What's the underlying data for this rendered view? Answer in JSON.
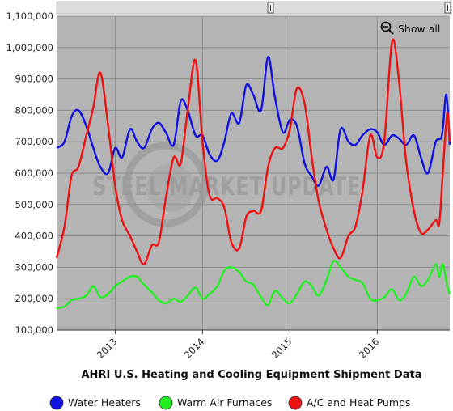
{
  "chart_data": {
    "type": "line",
    "title": "AHRI U.S. Heating and Cooling Equipment Shipment Data",
    "xlabel": "",
    "ylabel": "",
    "x_start": 2012.33,
    "x_end": 2016.83,
    "ylim": [
      100000,
      1100000
    ],
    "yticks": [
      100000,
      200000,
      300000,
      400000,
      500000,
      600000,
      700000,
      800000,
      900000,
      1000000,
      1100000
    ],
    "ytick_labels": [
      "100,000",
      "200,000",
      "300,000",
      "400,000",
      "500,000",
      "600,000",
      "700,000",
      "800,000",
      "900,000",
      "1,000,000",
      "1,100,000"
    ],
    "xticks": [
      2013,
      2014,
      2015,
      2016
    ],
    "xtick_labels": [
      "2013",
      "2014",
      "2015",
      "2016"
    ],
    "grid": true,
    "legend_position": "bottom",
    "watermark": "STEEL MARKET UPDATE",
    "zoom_label": "Show all",
    "series": [
      {
        "name": "Water Heaters",
        "color": "#1010e0",
        "x": [
          2012.33,
          2012.42,
          2012.5,
          2012.58,
          2012.67,
          2012.75,
          2012.83,
          2012.92,
          2013.0,
          2013.08,
          2013.17,
          2013.25,
          2013.33,
          2013.42,
          2013.5,
          2013.58,
          2013.67,
          2013.75,
          2013.83,
          2013.92,
          2014.0,
          2014.08,
          2014.17,
          2014.25,
          2014.33,
          2014.42,
          2014.5,
          2014.58,
          2014.67,
          2014.75,
          2014.83,
          2014.92,
          2015.0,
          2015.08,
          2015.17,
          2015.25,
          2015.33,
          2015.42,
          2015.5,
          2015.58,
          2015.67,
          2015.75,
          2015.83,
          2015.92,
          2016.0,
          2016.08,
          2016.17,
          2016.25,
          2016.33,
          2016.42,
          2016.5,
          2016.58,
          2016.67,
          2016.75,
          2016.83
        ],
        "y": [
          680000,
          700000,
          780000,
          800000,
          750000,
          680000,
          620000,
          600000,
          680000,
          650000,
          740000,
          700000,
          680000,
          740000,
          760000,
          730000,
          690000,
          830000,
          800000,
          720000,
          720000,
          660000,
          640000,
          700000,
          790000,
          760000,
          880000,
          850000,
          800000,
          970000,
          840000,
          730000,
          770000,
          750000,
          630000,
          590000,
          560000,
          620000,
          580000,
          740000,
          700000,
          690000,
          720000,
          740000,
          730000,
          690000,
          720000,
          710000,
          690000,
          720000,
          650000,
          600000,
          700000,
          750000,
          730000
        ],
        "values_hint": "y continues: 720000, 850000, 690000 near end"
      },
      {
        "name": "Warm Air Furnaces",
        "color": "#22ee22",
        "x": [
          2012.33,
          2012.42,
          2012.5,
          2012.58,
          2012.67,
          2012.75,
          2012.83,
          2012.92,
          2013.0,
          2013.08,
          2013.17,
          2013.25,
          2013.33,
          2013.42,
          2013.5,
          2013.58,
          2013.67,
          2013.75,
          2013.83,
          2013.92,
          2014.0,
          2014.08,
          2014.17,
          2014.25,
          2014.33,
          2014.42,
          2014.5,
          2014.58,
          2014.67,
          2014.75,
          2014.83,
          2014.92,
          2015.0,
          2015.08,
          2015.17,
          2015.25,
          2015.33,
          2015.42,
          2015.5,
          2015.58,
          2015.67,
          2015.75,
          2015.83,
          2015.92,
          2016.0,
          2016.08,
          2016.17,
          2016.25,
          2016.33,
          2016.42,
          2016.5,
          2016.58,
          2016.67,
          2016.75,
          2016.83
        ],
        "y": [
          170000,
          175000,
          195000,
          200000,
          210000,
          240000,
          205000,
          215000,
          240000,
          255000,
          270000,
          270000,
          245000,
          220000,
          195000,
          185000,
          200000,
          190000,
          210000,
          235000,
          200000,
          215000,
          240000,
          290000,
          300000,
          285000,
          255000,
          245000,
          205000,
          180000,
          225000,
          200000,
          185000,
          215000,
          255000,
          240000,
          210000,
          260000,
          320000,
          300000,
          270000,
          260000,
          250000,
          200000,
          195000,
          205000,
          230000,
          195000,
          215000,
          270000,
          240000,
          260000,
          310000,
          305000,
          270000
        ],
        "values_hint": "y continues: 270000, 310000, 240000, 215000 near end"
      },
      {
        "name": "A/C and Heat Pumps",
        "color": "#ee1111",
        "x": [
          2012.33,
          2012.42,
          2012.5,
          2012.58,
          2012.67,
          2012.75,
          2012.83,
          2012.92,
          2013.0,
          2013.08,
          2013.17,
          2013.25,
          2013.33,
          2013.42,
          2013.5,
          2013.58,
          2013.67,
          2013.75,
          2013.83,
          2013.92,
          2014.0,
          2014.08,
          2014.17,
          2014.25,
          2014.33,
          2014.42,
          2014.5,
          2014.58,
          2014.67,
          2014.75,
          2014.83,
          2014.92,
          2015.0,
          2015.08,
          2015.17,
          2015.25,
          2015.33,
          2015.42,
          2015.5,
          2015.58,
          2015.67,
          2015.75,
          2015.83,
          2015.92,
          2016.0,
          2016.08,
          2016.17,
          2016.25,
          2016.33,
          2016.42,
          2016.5,
          2016.58,
          2016.67,
          2016.75,
          2016.83
        ],
        "y": [
          330000,
          430000,
          590000,
          620000,
          720000,
          810000,
          920000,
          750000,
          560000,
          450000,
          400000,
          350000,
          310000,
          370000,
          380000,
          520000,
          650000,
          630000,
          800000,
          960000,
          700000,
          530000,
          520000,
          490000,
          380000,
          360000,
          460000,
          480000,
          480000,
          620000,
          680000,
          680000,
          740000,
          870000,
          820000,
          650000,
          510000,
          420000,
          360000,
          330000,
          400000,
          430000,
          540000,
          720000,
          650000,
          700000,
          1020000,
          890000,
          640000,
          480000,
          410000,
          420000,
          450000,
          460000,
          460000
        ],
        "values_hint": "y continues: 440000, 600000, 790000, 700000 near end"
      }
    ]
  }
}
